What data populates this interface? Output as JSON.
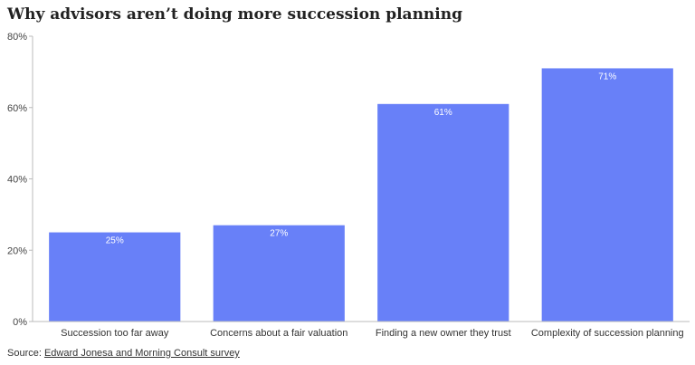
{
  "chart_data": {
    "type": "bar",
    "title": "Why advisors aren’t doing more succession planning",
    "categories": [
      "Succession too far away",
      "Concerns about a fair valuation",
      "Finding a new owner they trust",
      "Complexity of succession planning"
    ],
    "values": [
      25,
      27,
      61,
      71
    ],
    "data_labels": [
      "25%",
      "27%",
      "61%",
      "71%"
    ],
    "xlabel": "",
    "ylabel": "",
    "ylim": [
      0,
      80
    ],
    "yticks": [
      0,
      20,
      40,
      60,
      80
    ],
    "ytick_labels": [
      "0%",
      "20%",
      "40%",
      "60%",
      "80%"
    ],
    "grid": false,
    "bar_color": "#6880F8"
  },
  "source": {
    "prefix": "Source: ",
    "link_text": "Edward Jonesa and Morning Consult survey"
  }
}
